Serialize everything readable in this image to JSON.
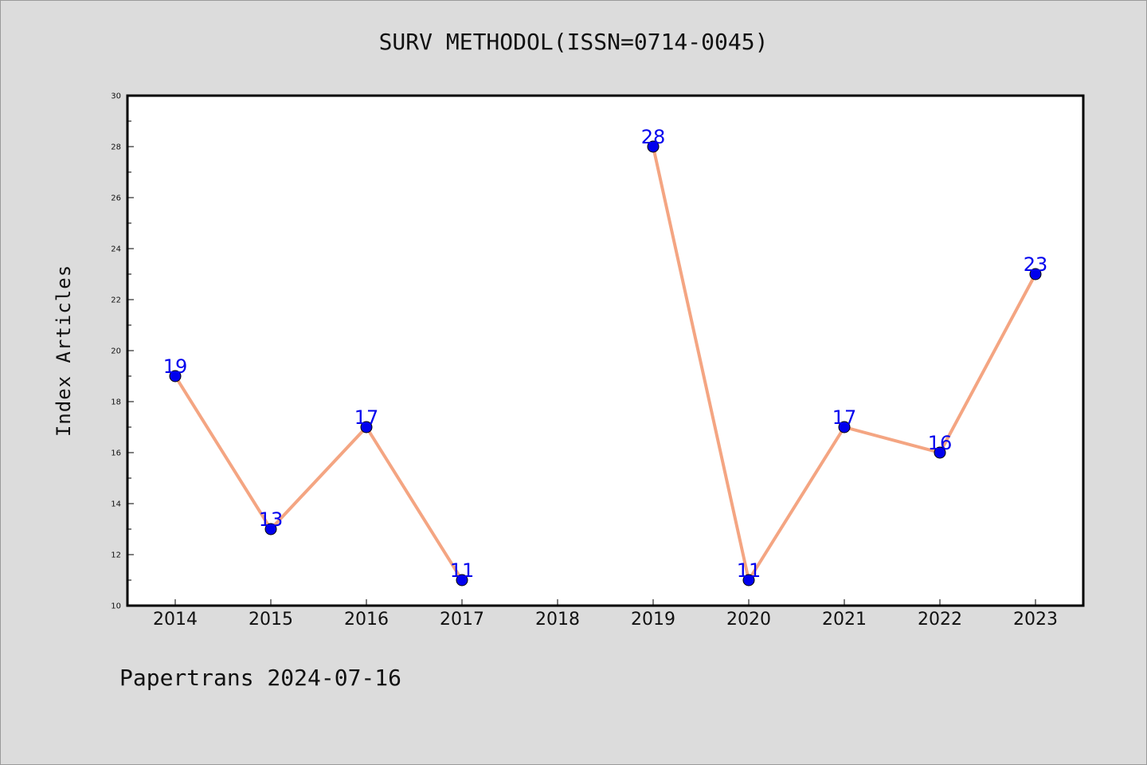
{
  "chart_data": {
    "type": "line",
    "title": "SURV METHODOL(ISSN=0714-0045)",
    "ylabel": "Index Articles",
    "xlabel": "",
    "categories": [
      "2014",
      "2015",
      "2016",
      "2017",
      "2018",
      "2019",
      "2020",
      "2021",
      "2022",
      "2023"
    ],
    "series": [
      {
        "values": [
          19,
          13,
          17,
          11,
          null,
          28,
          11,
          17,
          16,
          23
        ],
        "line_color": "#f4a582",
        "marker_color": "#0000ee"
      }
    ],
    "ylim": [
      10,
      30
    ],
    "y_ticks": [
      "10",
      "12",
      "14",
      "16",
      "18",
      "20",
      "22",
      "24",
      "26",
      "28",
      "30"
    ],
    "grid": false,
    "legend": "none"
  },
  "footer": "Papertrans 2024-07-16"
}
